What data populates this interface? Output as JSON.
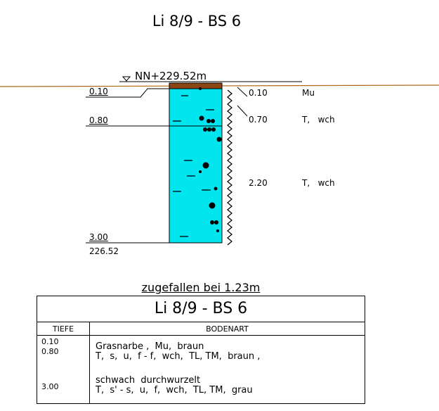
{
  "title": "Li 8/9 - BS 6",
  "surface_label": "NN+229.52m",
  "bottom_elevation": "226.52",
  "depth_marks": [
    "0.10",
    "0.80",
    "3.00"
  ],
  "layer_labels": [
    {
      "depth": "0.10",
      "code": "Mu"
    },
    {
      "depth": "0.70",
      "code": "T,   wch"
    },
    {
      "depth": "2.20",
      "code": "T,   wch"
    }
  ],
  "collapse_note": "zugefallen bei 1.23m",
  "legend": {
    "title": "Li 8/9 - BS 6",
    "col_depth": "TIEFE",
    "col_soil": "BODENART",
    "rows": [
      {
        "depths": [
          "0.10",
          "0.80"
        ],
        "line1": "Grasnarbe ,  Mu,  braun",
        "line2": "T,  s,  u,  f - f,  wch,  TL, TM,  braun ,"
      },
      {
        "depths": [
          "3.00"
        ],
        "line1": "schwach  durchwurzelt",
        "line2": "T,  s' - s,  u,  f,  wch,  TL, TM,  grau"
      }
    ]
  },
  "colors": {
    "ground_line": "#b06a20",
    "topsoil": "#8b4513",
    "clay": "#00e5ee"
  }
}
